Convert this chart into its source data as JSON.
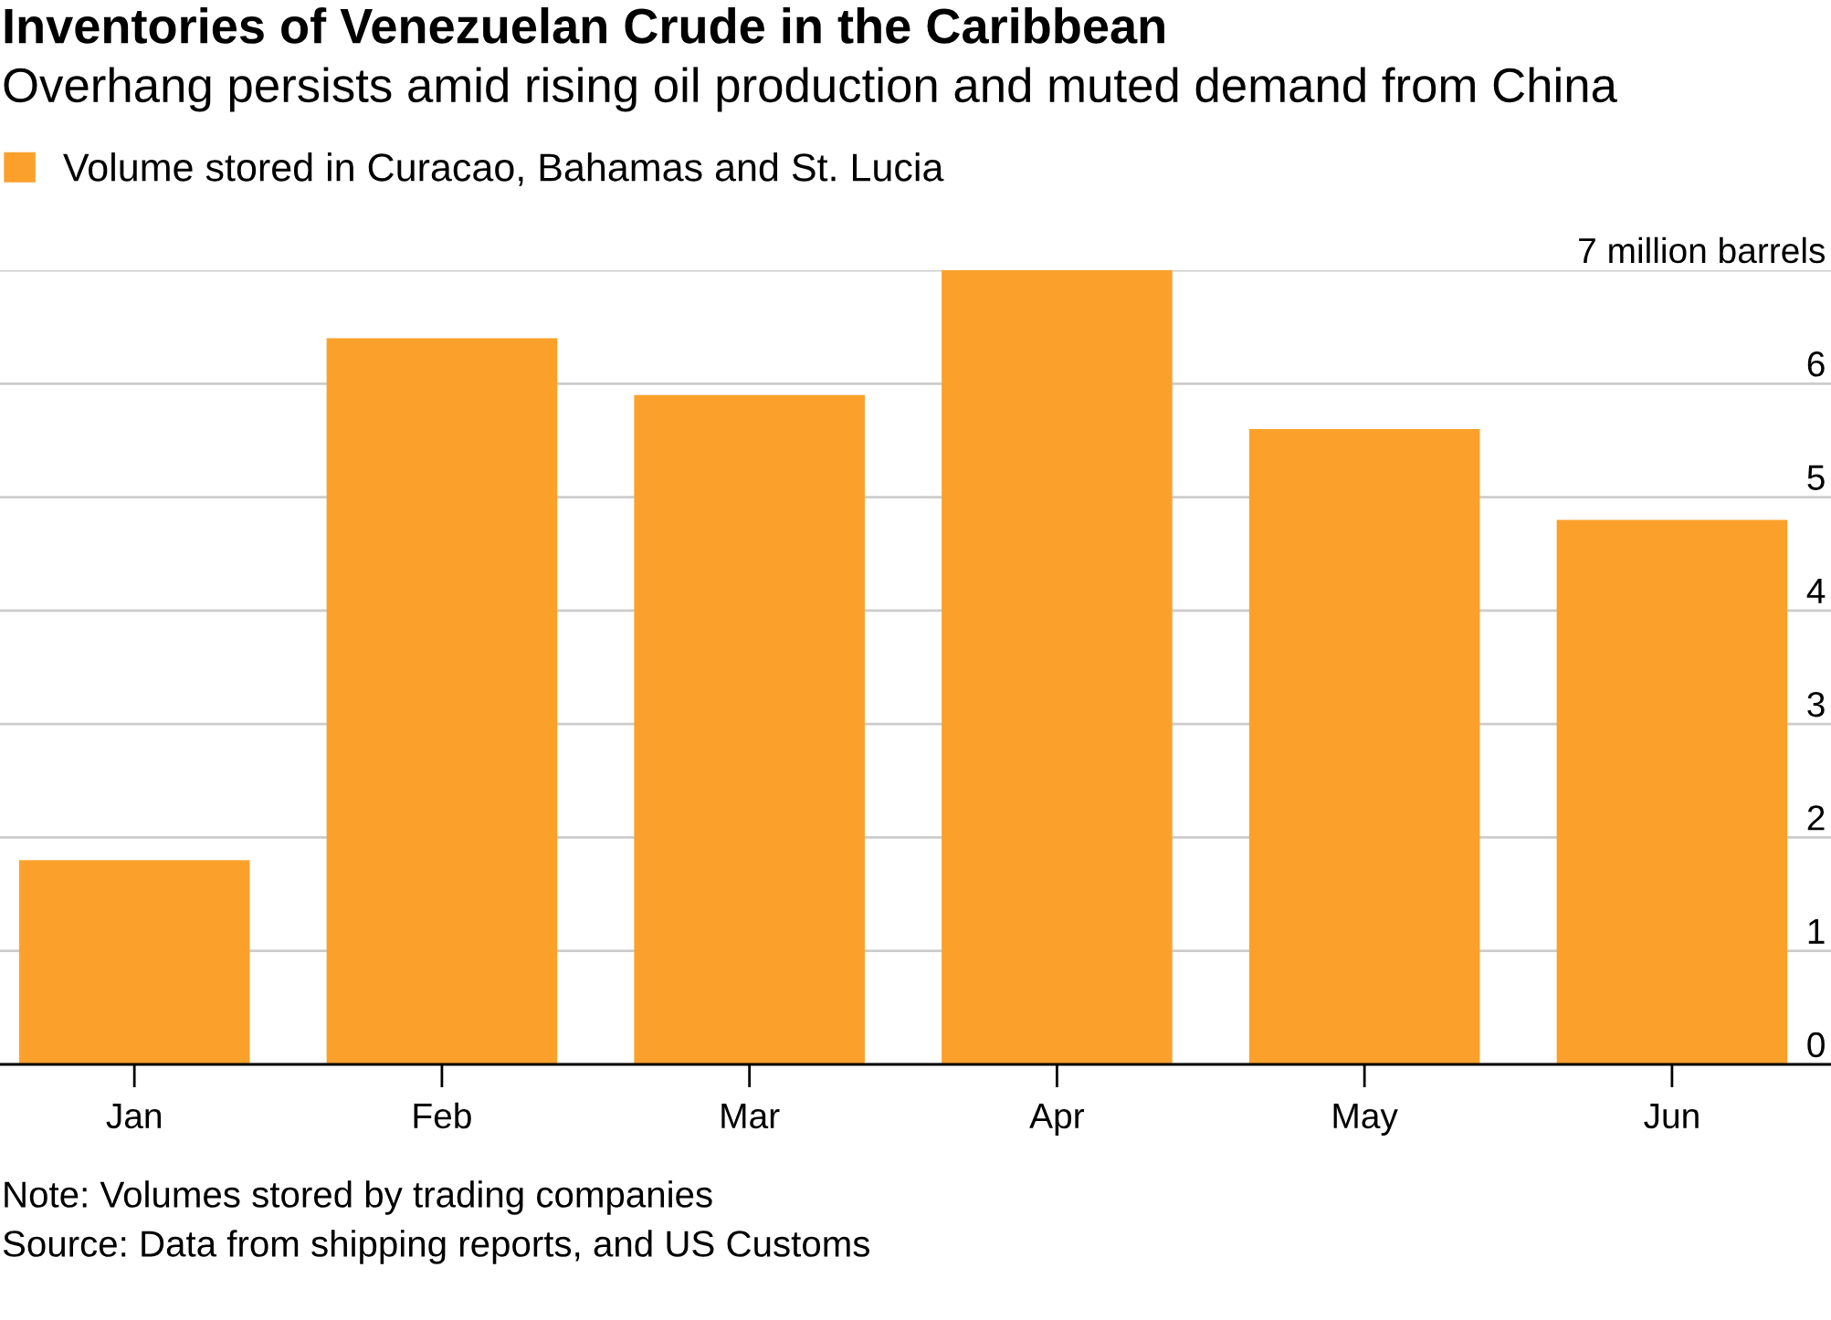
{
  "chart_data": {
    "type": "bar",
    "title": "Inventories of Venezuelan Crude in the Caribbean",
    "subtitle": "Overhang persists amid rising oil production and muted demand from China",
    "categories": [
      "Jan",
      "Feb",
      "Mar",
      "Apr",
      "May",
      "Jun"
    ],
    "series": [
      {
        "name": "Volume stored in Curacao, Bahamas and St. Lucia",
        "color": "#fba12b",
        "values": [
          1.8,
          6.4,
          5.9,
          7.0,
          5.6,
          4.8
        ]
      }
    ],
    "ylim": [
      0,
      7
    ],
    "yticks": [
      0,
      1,
      2,
      3,
      4,
      5,
      6,
      {
        "value": 7,
        "label": "7 million barrels"
      }
    ],
    "grid": "y",
    "legend": "top left",
    "annotations": [
      "Note: Volumes stored by trading companies",
      "Source: Data from shipping reports, and US Customs"
    ]
  }
}
